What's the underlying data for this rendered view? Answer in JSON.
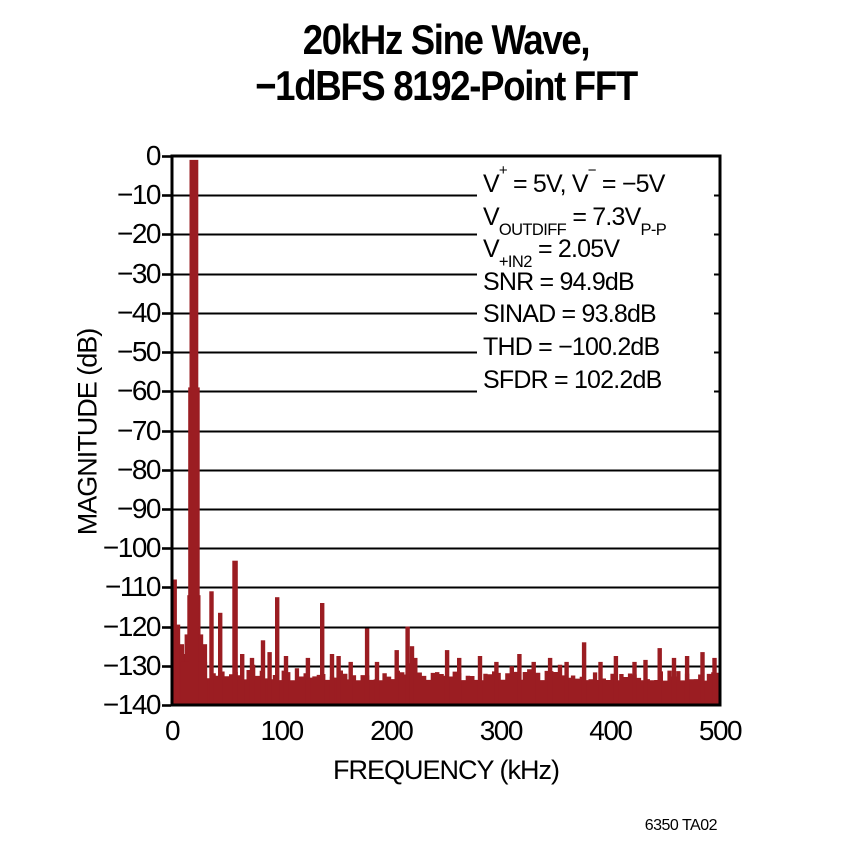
{
  "title": {
    "line1": "20kHz Sine Wave,",
    "line2": "−1dBFS 8192-Point FFT"
  },
  "figure_id": "6350 TA02",
  "chart_data": {
    "type": "bar",
    "subtype": "fft-spectrum",
    "title": "20kHz Sine Wave, −1dBFS 8192-Point FFT",
    "xlabel": "FREQUENCY (kHz)",
    "ylabel": "MAGNITUDE (dB)",
    "xlim": [
      0,
      500
    ],
    "ylim": [
      -140,
      0
    ],
    "x_ticks": [
      0,
      100,
      200,
      300,
      400,
      500
    ],
    "y_ticks": [
      0,
      -10,
      -20,
      -30,
      -40,
      -50,
      -60,
      -70,
      -80,
      -90,
      -100,
      -110,
      -120,
      -130,
      -140
    ],
    "grid": "horizontal",
    "legend": "none",
    "bar_color": "#9B1D22",
    "axis_color": "#000000",
    "main_tone": {
      "freq_khz": 20,
      "peak_db": -1,
      "width_khz": 8,
      "skirt": [
        {
          "width_khz": 10.5,
          "from_db": -59
        },
        {
          "width_khz": 12,
          "from_db": -112
        },
        {
          "width_khz": 17,
          "from_db": -122
        },
        {
          "width_khz": 24,
          "from_db": -129
        }
      ]
    },
    "spurs": [
      {
        "f": 2.5,
        "db": -108
      },
      {
        "f": 5.5,
        "db": -119.5
      },
      {
        "f": 9,
        "db": -124.5
      },
      {
        "f": 12,
        "db": -127
      },
      {
        "f": 30,
        "db": -124.5
      },
      {
        "f": 36,
        "db": -111
      },
      {
        "f": 44,
        "db": -116.5
      },
      {
        "f": 57.5,
        "db": -103.2,
        "w": 5
      },
      {
        "f": 64,
        "db": -127
      },
      {
        "f": 73,
        "db": -128
      },
      {
        "f": 83,
        "db": -123.5
      },
      {
        "f": 89,
        "db": -126.5
      },
      {
        "f": 96,
        "db": -112.5
      },
      {
        "f": 104,
        "db": -127.5
      },
      {
        "f": 124,
        "db": -128
      },
      {
        "f": 137,
        "db": -114
      },
      {
        "f": 146,
        "db": -127
      },
      {
        "f": 152,
        "db": -127.5
      },
      {
        "f": 163,
        "db": -129
      },
      {
        "f": 178,
        "db": -120.5
      },
      {
        "f": 187,
        "db": -129
      },
      {
        "f": 205,
        "db": -126
      },
      {
        "f": 215,
        "db": -120
      },
      {
        "f": 219,
        "db": -125
      },
      {
        "f": 222,
        "db": -128
      },
      {
        "f": 251,
        "db": -126
      },
      {
        "f": 262,
        "db": -128
      },
      {
        "f": 281,
        "db": -127.5
      },
      {
        "f": 296,
        "db": -129
      },
      {
        "f": 317,
        "db": -127
      },
      {
        "f": 330,
        "db": -129
      },
      {
        "f": 345,
        "db": -128
      },
      {
        "f": 360,
        "db": -129
      },
      {
        "f": 376,
        "db": -124
      },
      {
        "f": 391,
        "db": -129
      },
      {
        "f": 405,
        "db": -127.5
      },
      {
        "f": 422,
        "db": -129
      },
      {
        "f": 432,
        "db": -128.5
      },
      {
        "f": 445,
        "db": -125.5
      },
      {
        "f": 458,
        "db": -128
      },
      {
        "f": 470,
        "db": -127.5
      },
      {
        "f": 484,
        "db": -126.5
      },
      {
        "f": 495,
        "db": -128
      }
    ],
    "noise_floor": {
      "bin_khz": 4,
      "base_db": -133.8,
      "jitter_db": 2.6,
      "bump_prob": 0.13,
      "bump_db": 3.0,
      "seed": 23
    },
    "stats": {
      "snr_db": 94.9,
      "sinad_db": 93.8,
      "thd_db": -100.2,
      "sfdr_db": 102.2
    },
    "annotation_lines": [
      [
        {
          "t": "V"
        },
        {
          "t": "+",
          "s": "sup"
        },
        {
          "t": " = 5V, V"
        },
        {
          "t": "−",
          "s": "sup"
        },
        {
          "t": " = −5V"
        }
      ],
      [
        {
          "t": "V"
        },
        {
          "t": "OUTDIFF",
          "s": "sub"
        },
        {
          "t": " = 7.3V"
        },
        {
          "t": "P-P",
          "s": "sub"
        }
      ],
      [
        {
          "t": "V"
        },
        {
          "t": "+IN2",
          "s": "sub"
        },
        {
          "t": " = 2.05V"
        }
      ],
      [
        {
          "t": "SNR = 94.9dB"
        }
      ],
      [
        {
          "t": "SINAD = 93.8dB"
        }
      ],
      [
        {
          "t": "THD = −100.2dB"
        }
      ],
      [
        {
          "t": "SFDR = 102.2dB"
        }
      ]
    ]
  }
}
